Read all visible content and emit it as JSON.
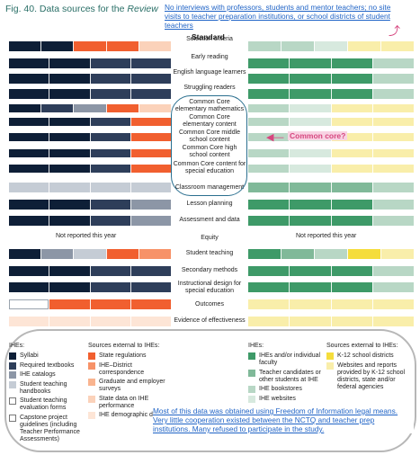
{
  "figure": {
    "title_prefix": "Fig. 40. Data sources for the ",
    "title_italic": "Review",
    "column_header": "Standard"
  },
  "annotations": {
    "top_note": "No interviews with professors, students and mentor teachers; no site visits to teacher preparation institutions, or school districts of student teachers",
    "common_core_callout": "Common core?",
    "bottom_note": "Most of this data was obtained using Freedom of Information legal means. Very little cooperation existed between the NCTQ and teacher prep institutions. Many refused to participate in the study."
  },
  "colors": {
    "syllabi": "#0e1f37",
    "required_textbooks": "#2e3e5a",
    "ihe_catalogs": "#8c96a6",
    "student_teaching_handbooks": "#c5ccd5",
    "student_teaching_evaluation_forms": "#ffffff",
    "capstone_project_guidelines": "#ffffff",
    "state_regulations": "#f15f2f",
    "ihe_district_correspondence": "#f79268",
    "graduate_employer_surveys": "#f9b48f",
    "state_data_ihe_performance": "#fbd2ba",
    "ihe_demographic_data": "#fde5d6",
    "ihe_individual_faculty": "#3e9a68",
    "teacher_candidates": "#80b999",
    "ihe_bookstores": "#b8d7c5",
    "ihe_websites": "#d7e9de",
    "k12_school_districts": "#f5dd3c",
    "websites_reports_k12": "#f9eeaa"
  },
  "legend": {
    "left_head": "IHEs:",
    "left_items": [
      {
        "key": "syllabi",
        "label": "Syllabi"
      },
      {
        "key": "required_textbooks",
        "label": "Required textbooks"
      },
      {
        "key": "ihe_catalogs",
        "label": "IHE catalogs"
      },
      {
        "key": "student_teaching_handbooks",
        "label": "Student teaching handbooks"
      },
      {
        "key": "student_teaching_evaluation_forms",
        "label": "Student teaching evaluation forms"
      },
      {
        "key": "capstone_project_guidelines",
        "label": "Capstone project guidelines (including Teacher Performance Assessments)"
      }
    ],
    "mid_head": "Sources external to IHEs:",
    "mid_items": [
      {
        "key": "state_regulations",
        "label": "State regulations"
      },
      {
        "key": "ihe_district_correspondence",
        "label": "IHE–District correspondence"
      },
      {
        "key": "graduate_employer_surveys",
        "label": "Graduate and employer surveys"
      },
      {
        "key": "state_data_ihe_performance",
        "label": "State data on IHE performance"
      },
      {
        "key": "ihe_demographic_data",
        "label": "IHE demographic data"
      }
    ],
    "right_head": "IHEs:",
    "right_items": [
      {
        "key": "ihe_individual_faculty",
        "label": "IHEs and/or individual faculty"
      },
      {
        "key": "teacher_candidates",
        "label": "Teacher candidates or other students at IHE"
      },
      {
        "key": "ihe_bookstores",
        "label": "IHE bookstores"
      },
      {
        "key": "ihe_websites",
        "label": "IHE websites"
      }
    ],
    "far_head": "Sources external to IHEs:",
    "far_items": [
      {
        "key": "k12_school_districts",
        "label": "K-12 school districts"
      },
      {
        "key": "websites_reports_k12",
        "label": "Websites and reports provided by K-12 school districts, state and/or federal agencies"
      }
    ]
  },
  "standards": [
    {
      "label": "Selection criteria",
      "left": [
        "syllabi",
        "syllabi",
        "state_regulations",
        "state_regulations",
        "state_data_ihe_performance"
      ],
      "right": [
        "ihe_bookstores",
        "ihe_bookstores",
        "ihe_websites",
        "websites_reports_k12",
        "websites_reports_k12"
      ]
    },
    {
      "label": "Early reading",
      "left": [
        "syllabi",
        "syllabi",
        "required_textbooks",
        "required_textbooks"
      ],
      "right": [
        "ihe_individual_faculty",
        "ihe_individual_faculty",
        "ihe_individual_faculty",
        "ihe_bookstores"
      ]
    },
    {
      "label": "English language learners",
      "left": [
        "syllabi",
        "syllabi",
        "required_textbooks",
        "required_textbooks"
      ],
      "right": [
        "ihe_individual_faculty",
        "ihe_individual_faculty",
        "ihe_individual_faculty",
        "ihe_bookstores"
      ]
    },
    {
      "label": "Struggling readers",
      "left": [
        "syllabi",
        "syllabi",
        "required_textbooks",
        "required_textbooks"
      ],
      "right": [
        "ihe_individual_faculty",
        "ihe_individual_faculty",
        "ihe_individual_faculty",
        "ihe_bookstores"
      ]
    },
    {
      "label": "Common Core elementary mathematics",
      "left": [
        "syllabi",
        "required_textbooks",
        "ihe_catalogs",
        "state_regulations",
        "state_data_ihe_performance"
      ],
      "right": [
        "ihe_bookstores",
        "ihe_websites",
        "websites_reports_k12",
        "websites_reports_k12"
      ]
    },
    {
      "label": "Common Core elementary content",
      "left": [
        "syllabi",
        "syllabi",
        "required_textbooks",
        "state_regulations"
      ],
      "right": [
        "ihe_bookstores",
        "ihe_websites",
        "websites_reports_k12",
        "websites_reports_k12"
      ]
    },
    {
      "label": "Common Core middle school content",
      "left": [
        "syllabi",
        "syllabi",
        "required_textbooks",
        "state_regulations"
      ],
      "right": [
        "ihe_bookstores",
        "ihe_websites",
        "websites_reports_k12",
        "websites_reports_k12"
      ]
    },
    {
      "label": "Common Core high school content",
      "left": [
        "syllabi",
        "syllabi",
        "required_textbooks",
        "state_regulations"
      ],
      "right": [
        "ihe_bookstores",
        "ihe_websites",
        "websites_reports_k12",
        "websites_reports_k12"
      ]
    },
    {
      "label": "Common Core content for special education",
      "left": [
        "syllabi",
        "syllabi",
        "required_textbooks",
        "state_regulations"
      ],
      "right": [
        "ihe_bookstores",
        "ihe_websites",
        "websites_reports_k12",
        "websites_reports_k12"
      ]
    },
    {
      "label": "Classroom management",
      "left": [
        "student_teaching_handbooks",
        "student_teaching_handbooks",
        "student_teaching_handbooks",
        "student_teaching_handbooks"
      ],
      "right": [
        "teacher_candidates",
        "teacher_candidates",
        "teacher_candidates",
        "ihe_bookstores"
      ]
    },
    {
      "label": "Lesson planning",
      "left": [
        "syllabi",
        "syllabi",
        "required_textbooks",
        "ihe_catalogs"
      ],
      "right": [
        "ihe_individual_faculty",
        "ihe_individual_faculty",
        "ihe_individual_faculty",
        "ihe_bookstores"
      ]
    },
    {
      "label": "Assessment and data",
      "left": [
        "syllabi",
        "syllabi",
        "required_textbooks",
        "ihe_catalogs"
      ],
      "right": [
        "ihe_individual_faculty",
        "ihe_individual_faculty",
        "ihe_individual_faculty",
        "ihe_bookstores"
      ]
    },
    {
      "label": "Equity",
      "left": [],
      "right": [],
      "not_reported": "Not reported this year"
    },
    {
      "label": "Student teaching",
      "left": [
        "syllabi",
        "ihe_catalogs",
        "student_teaching_handbooks",
        "state_regulations",
        "ihe_district_correspondence"
      ],
      "right": [
        "ihe_individual_faculty",
        "teacher_candidates",
        "ihe_bookstores",
        "k12_school_districts",
        "websites_reports_k12"
      ]
    },
    {
      "label": "Secondary methods",
      "left": [
        "syllabi",
        "syllabi",
        "required_textbooks",
        "required_textbooks"
      ],
      "right": [
        "ihe_individual_faculty",
        "ihe_individual_faculty",
        "ihe_individual_faculty",
        "ihe_bookstores"
      ]
    },
    {
      "label": "Instructional design for special education",
      "left": [
        "syllabi",
        "syllabi",
        "required_textbooks",
        "required_textbooks"
      ],
      "right": [
        "ihe_individual_faculty",
        "ihe_individual_faculty",
        "ihe_individual_faculty",
        "ihe_bookstores"
      ]
    },
    {
      "label": "Outcomes",
      "left": [
        "student_teaching_evaluation_forms",
        "state_regulations",
        "state_regulations",
        "state_regulations"
      ],
      "right": [
        "websites_reports_k12",
        "websites_reports_k12",
        "websites_reports_k12",
        "websites_reports_k12"
      ]
    },
    {
      "label": "Evidence of effectiveness",
      "left": [
        "ihe_demographic_data",
        "ihe_demographic_data",
        "ihe_demographic_data",
        "ihe_demographic_data"
      ],
      "right": [
        "websites_reports_k12",
        "websites_reports_k12",
        "websites_reports_k12",
        "websites_reports_k12"
      ]
    }
  ]
}
